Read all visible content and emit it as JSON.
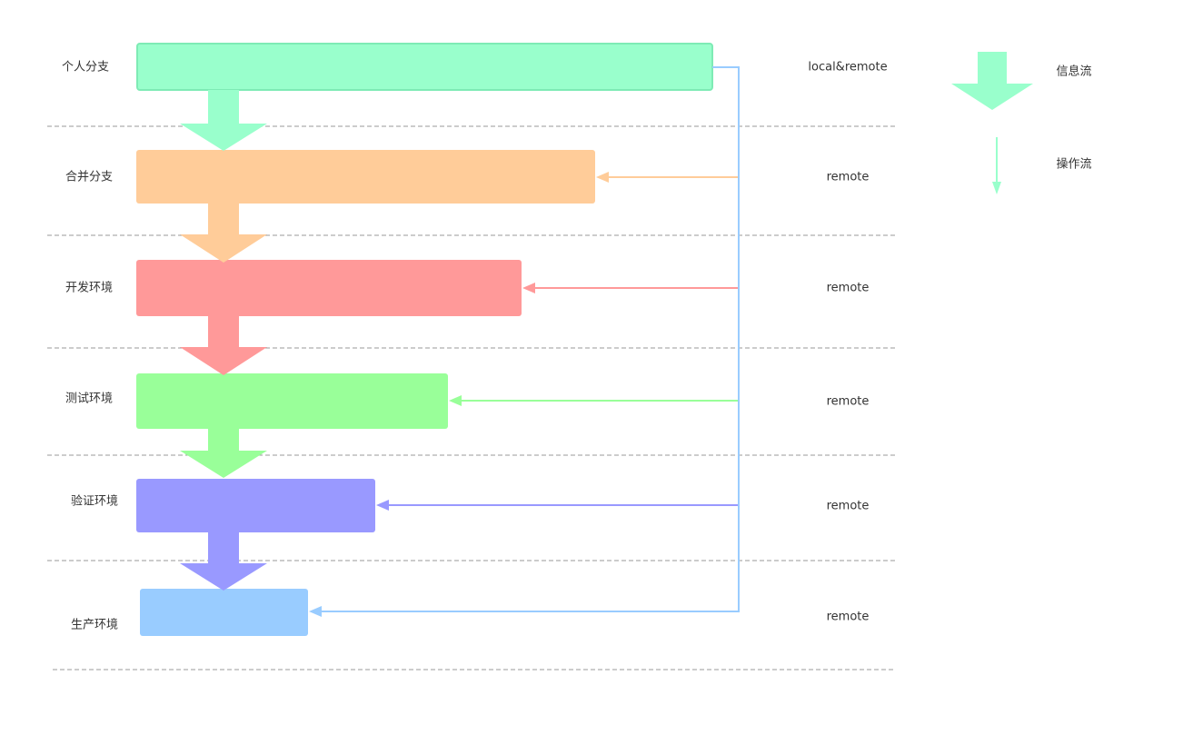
{
  "stages": [
    {
      "label": "个人分支",
      "scope": "local&remote",
      "color": "#99FFCC",
      "border": "#7EEBB5"
    },
    {
      "label": "合并分支",
      "scope": "remote",
      "color": "#FFCC99",
      "border": "#FFCC99"
    },
    {
      "label": "开发环境",
      "scope": "remote",
      "color": "#FF9999",
      "border": "#FF9999"
    },
    {
      "label": "测试环境",
      "scope": "remote",
      "color": "#99FF99",
      "border": "#99FF99"
    },
    {
      "label": "验证环境",
      "scope": "remote",
      "color": "#9999FF",
      "border": "#9999FF"
    },
    {
      "label": "生产环境",
      "scope": "remote",
      "color": "#99CCFF",
      "border": "#99CCFF"
    }
  ],
  "legend": {
    "info_flow": {
      "label": "信息流",
      "color": "#99FFCC"
    },
    "op_flow": {
      "label": "操作流",
      "color": "#99FFCC"
    }
  },
  "colors": {
    "divider": "#999999",
    "text": "#333333"
  }
}
